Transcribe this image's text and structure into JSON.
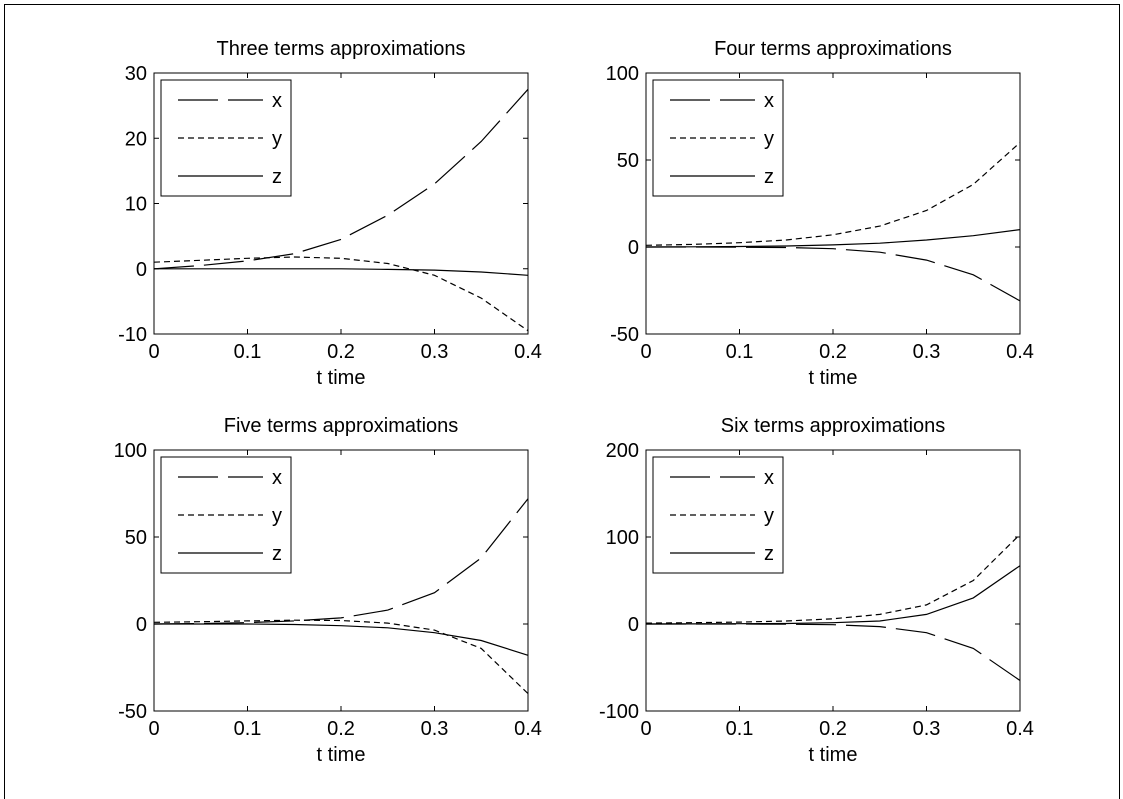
{
  "chart_data": [
    {
      "type": "line",
      "title": "Three terms approximations",
      "xlabel": "t time",
      "ylabel": "",
      "xlim": [
        0,
        0.4
      ],
      "ylim": [
        -10,
        30
      ],
      "xticks": [
        "0",
        "0.1",
        "0.2",
        "0.3",
        "0.4"
      ],
      "yticks": [
        "-10",
        "0",
        "10",
        "20",
        "30"
      ],
      "legend": {
        "position": "top-left",
        "entries": [
          "x",
          "y",
          "z"
        ]
      },
      "x": [
        0,
        0.05,
        0.1,
        0.15,
        0.2,
        0.25,
        0.3,
        0.35,
        0.4
      ],
      "series": [
        {
          "name": "x",
          "style": "long-dash",
          "values": [
            0.0,
            0.5,
            1.2,
            2.3,
            4.5,
            8.2,
            13.0,
            19.5,
            27.5
          ]
        },
        {
          "name": "y",
          "style": "dashed",
          "values": [
            1.0,
            1.3,
            1.6,
            1.8,
            1.6,
            0.8,
            -1.0,
            -4.5,
            -9.5
          ]
        },
        {
          "name": "z",
          "style": "solid",
          "values": [
            0.0,
            0.0,
            0.0,
            0.0,
            0.0,
            -0.1,
            -0.2,
            -0.5,
            -1.0
          ]
        }
      ]
    },
    {
      "type": "line",
      "title": "Four terms approximations",
      "xlabel": "t time",
      "ylabel": "",
      "xlim": [
        0,
        0.4
      ],
      "ylim": [
        -50,
        100
      ],
      "xticks": [
        "0",
        "0.1",
        "0.2",
        "0.3",
        "0.4"
      ],
      "yticks": [
        "-50",
        "0",
        "50",
        "100"
      ],
      "legend": {
        "position": "top-left",
        "entries": [
          "x",
          "y",
          "z"
        ]
      },
      "x": [
        0,
        0.05,
        0.1,
        0.15,
        0.2,
        0.25,
        0.3,
        0.35,
        0.4
      ],
      "series": [
        {
          "name": "x",
          "style": "long-dash",
          "values": [
            0.0,
            0.0,
            -0.1,
            -0.3,
            -1.0,
            -3.0,
            -7.5,
            -16.0,
            -31.0
          ]
        },
        {
          "name": "y",
          "style": "dashed",
          "values": [
            1.0,
            1.5,
            2.5,
            4.0,
            7.0,
            12.0,
            21.0,
            36.0,
            60.0
          ]
        },
        {
          "name": "z",
          "style": "solid",
          "values": [
            0.0,
            0.1,
            0.3,
            0.6,
            1.2,
            2.2,
            4.0,
            6.5,
            10.0
          ]
        }
      ]
    },
    {
      "type": "line",
      "title": "Five terms approximations",
      "xlabel": "t time",
      "ylabel": "",
      "xlim": [
        0,
        0.4
      ],
      "ylim": [
        -50,
        100
      ],
      "xticks": [
        "0",
        "0.1",
        "0.2",
        "0.3",
        "0.4"
      ],
      "yticks": [
        "-50",
        "0",
        "50",
        "100"
      ],
      "legend": {
        "position": "top-left",
        "entries": [
          "x",
          "y",
          "z"
        ]
      },
      "x": [
        0,
        0.05,
        0.1,
        0.15,
        0.2,
        0.25,
        0.3,
        0.35,
        0.4
      ],
      "series": [
        {
          "name": "x",
          "style": "long-dash",
          "values": [
            0.0,
            0.3,
            0.8,
            1.8,
            3.5,
            8.0,
            18.0,
            38.0,
            72.0
          ]
        },
        {
          "name": "y",
          "style": "dashed",
          "values": [
            1.0,
            1.3,
            1.8,
            2.2,
            2.0,
            0.5,
            -3.5,
            -14.0,
            -40.0
          ]
        },
        {
          "name": "z",
          "style": "solid",
          "values": [
            0.0,
            0.0,
            0.0,
            -0.3,
            -1.0,
            -2.2,
            -5.0,
            -9.5,
            -18.0
          ]
        }
      ]
    },
    {
      "type": "line",
      "title": "Six terms approximations",
      "xlabel": "t time",
      "ylabel": "",
      "xlim": [
        0,
        0.4
      ],
      "ylim": [
        -100,
        200
      ],
      "xticks": [
        "0",
        "0.1",
        "0.2",
        "0.3",
        "0.4"
      ],
      "yticks": [
        "-100",
        "0",
        "100",
        "200"
      ],
      "legend": {
        "position": "top-left",
        "entries": [
          "x",
          "y",
          "z"
        ]
      },
      "x": [
        0,
        0.05,
        0.1,
        0.15,
        0.2,
        0.25,
        0.3,
        0.35,
        0.4
      ],
      "series": [
        {
          "name": "x",
          "style": "long-dash",
          "values": [
            0.0,
            0.0,
            0.0,
            -0.2,
            -0.8,
            -3.0,
            -10.0,
            -28.0,
            -65.0
          ]
        },
        {
          "name": "y",
          "style": "dashed",
          "values": [
            1.0,
            1.5,
            2.2,
            3.5,
            6.0,
            11.0,
            22.0,
            50.0,
            103.0
          ]
        },
        {
          "name": "z",
          "style": "solid",
          "values": [
            0.0,
            0.1,
            0.3,
            0.6,
            1.5,
            3.5,
            11.0,
            30.0,
            67.0
          ]
        }
      ]
    }
  ]
}
